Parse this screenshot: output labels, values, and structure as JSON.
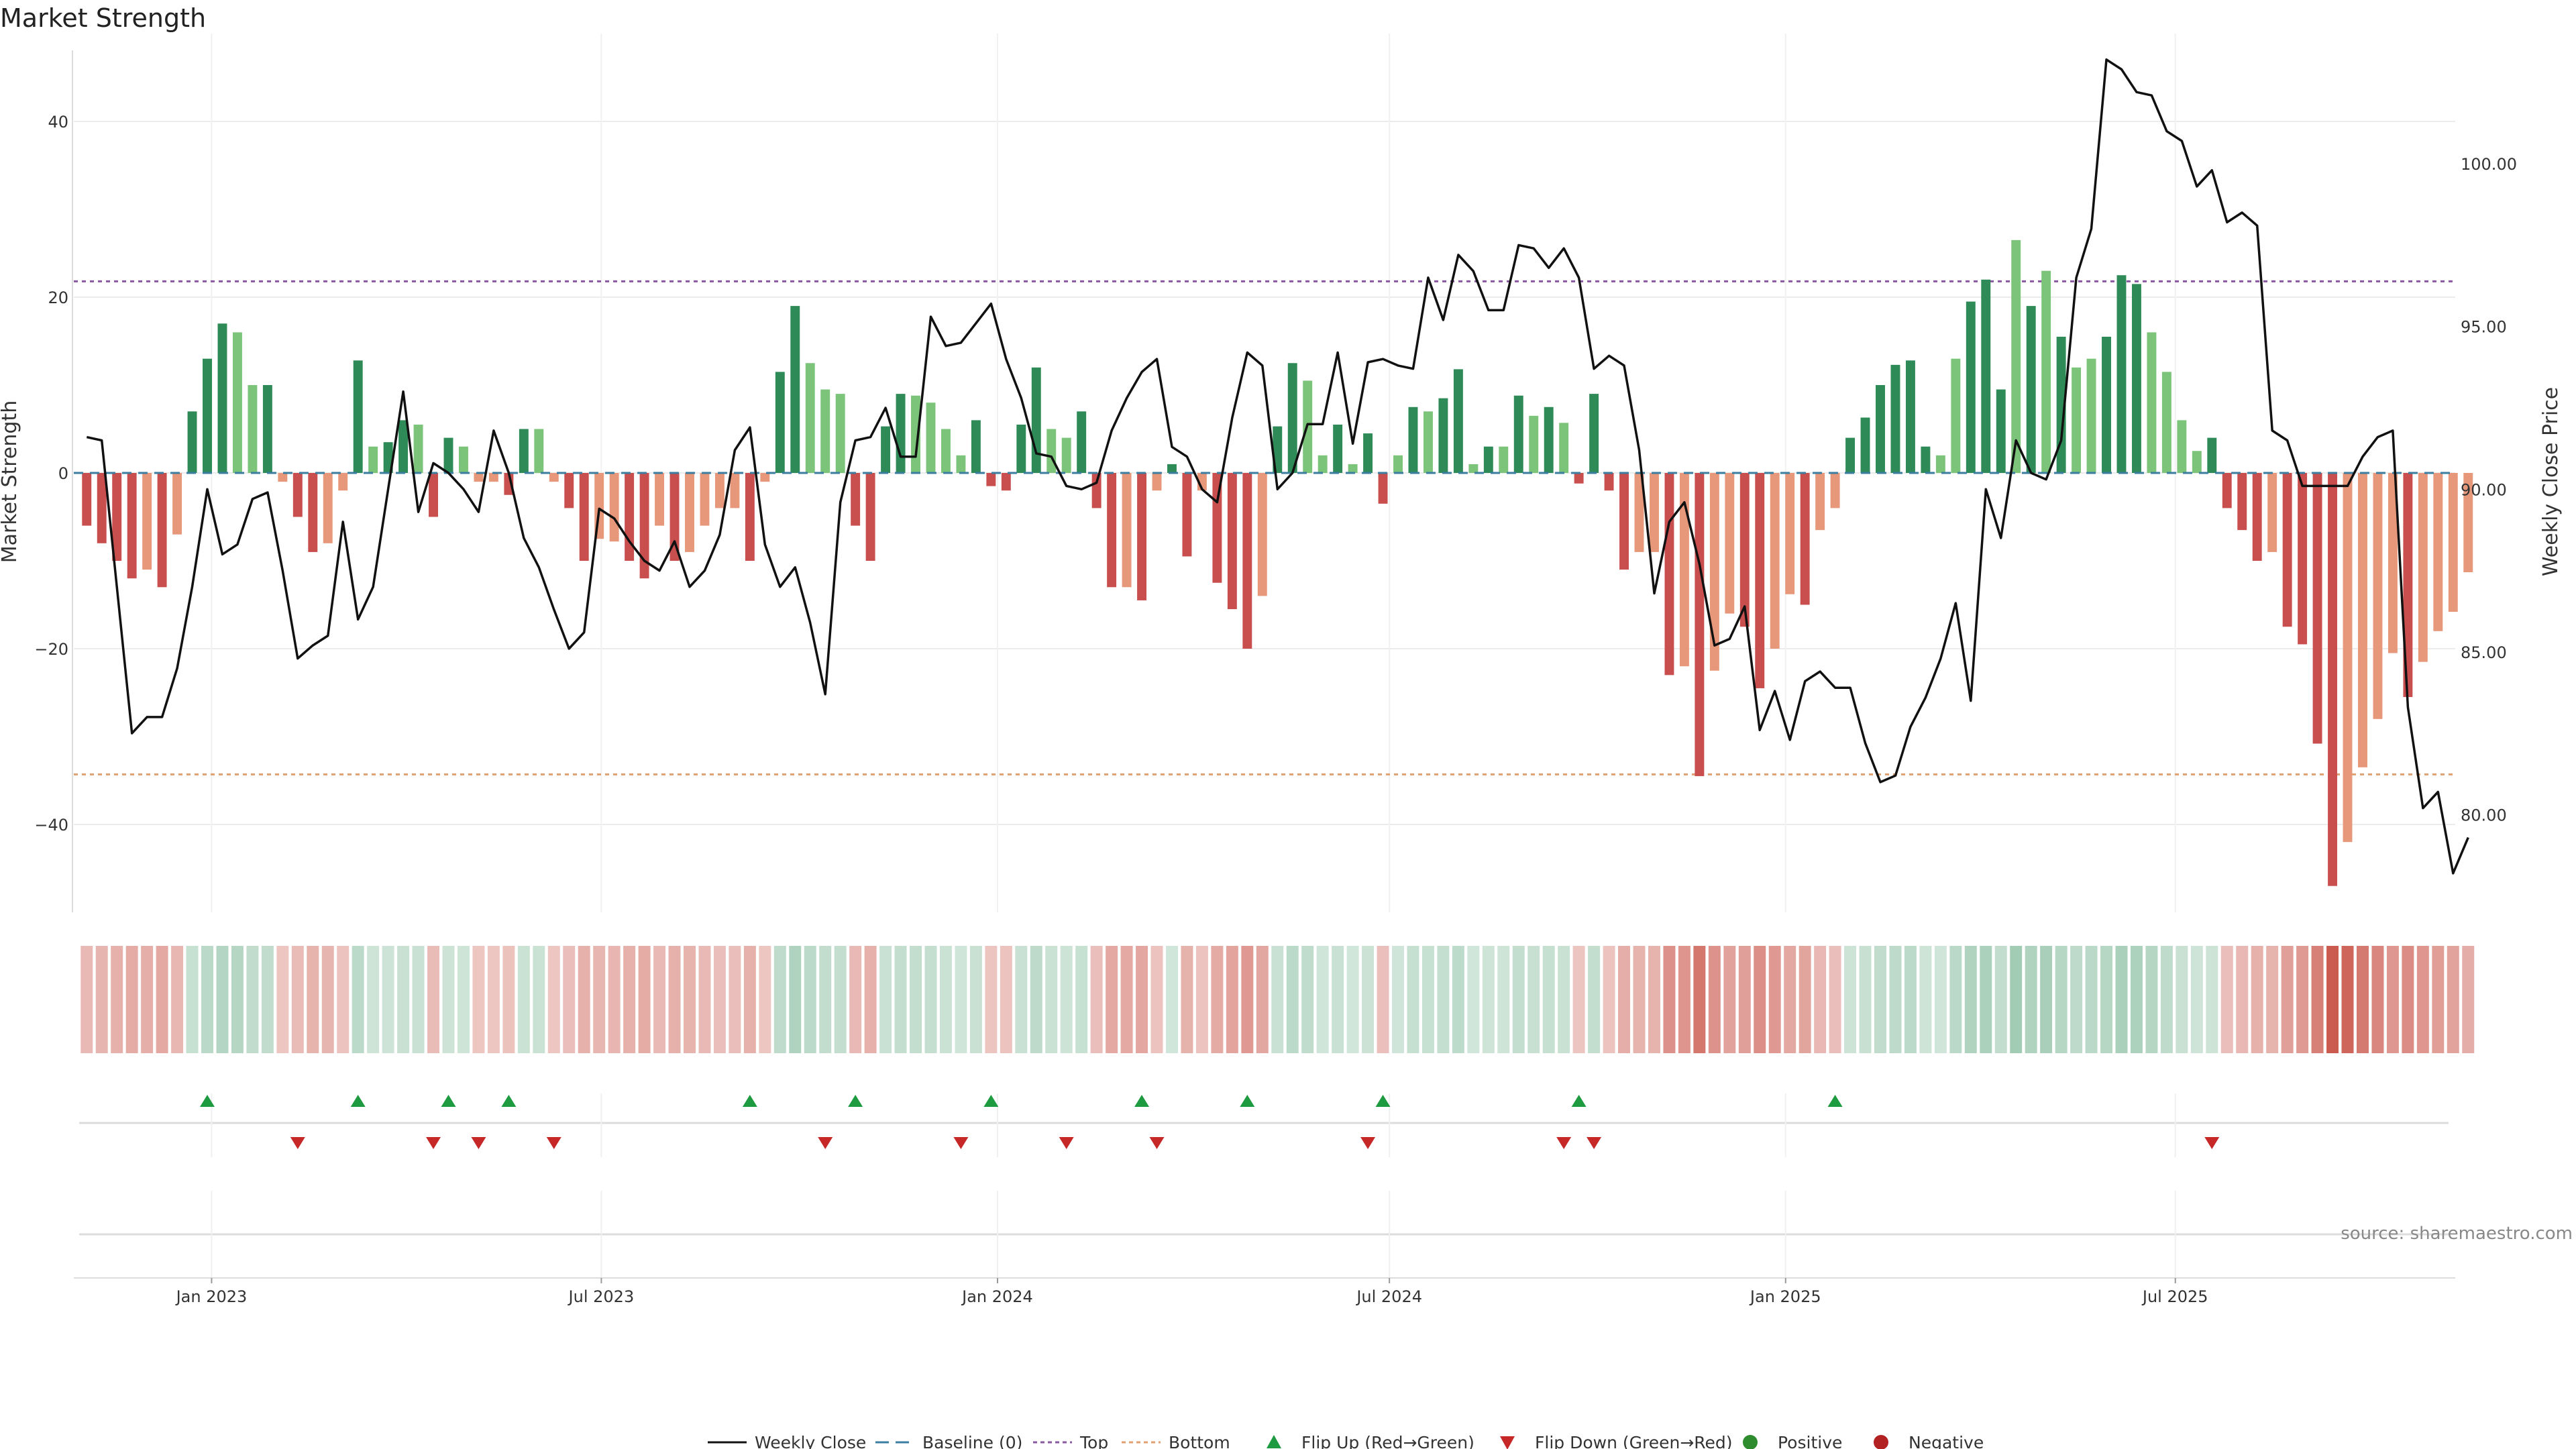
{
  "title": "Market Strength",
  "source": "source: sharemaestro.com",
  "colors": {
    "strong_green": "#2e8b57",
    "light_green": "#7cc47a",
    "strong_red": "#c94f4f",
    "light_red": "#e8987a",
    "price_line": "#111111",
    "baseline": "#3b7ea1",
    "top": "#8a5aa0",
    "bottom": "#e0a070",
    "flip_up": "#1e9a40",
    "flip_down": "#c62828",
    "positive": "#2e8b2e",
    "negative": "#b22222"
  },
  "legend": [
    {
      "key": "weekly_close",
      "label": "Weekly Close"
    },
    {
      "key": "baseline",
      "label": "Baseline (0)"
    },
    {
      "key": "top",
      "label": "Top"
    },
    {
      "key": "bottom",
      "label": "Bottom"
    },
    {
      "key": "flip_up",
      "label": "Flip Up (Red→Green)"
    },
    {
      "key": "flip_down",
      "label": "Flip Down (Green→Red)"
    },
    {
      "key": "positive",
      "label": "Positive"
    },
    {
      "key": "negative",
      "label": "Negative"
    }
  ],
  "chart_data": {
    "type": "bar",
    "title": "Market Strength",
    "ylabel": "Market Strength",
    "y2label": "Weekly Close Price",
    "ylim": [
      -50,
      50
    ],
    "y2lim": [
      77,
      104
    ],
    "y_ticks": [
      40,
      20,
      0,
      -20,
      -40
    ],
    "y_tick_labels": [
      "40",
      "20",
      "0",
      "−20",
      "−40"
    ],
    "y2_ticks": [
      100,
      95,
      90,
      85,
      80
    ],
    "y2_tick_labels": [
      "100.00",
      "95.00",
      "90.00",
      "85.00",
      "80.00"
    ],
    "x_range": [
      "2022-10-29",
      "2025-11-08"
    ],
    "date_ticks": [
      {
        "date": "2023-01-01",
        "label": "Jan 2023"
      },
      {
        "date": "2023-07-01",
        "label": "Jul 2023"
      },
      {
        "date": "2024-01-01",
        "label": "Jan 2024"
      },
      {
        "date": "2024-07-01",
        "label": "Jul 2024"
      },
      {
        "date": "2025-01-01",
        "label": "Jan 2025"
      },
      {
        "date": "2025-07-01",
        "label": "Jul 2025"
      }
    ],
    "top_threshold": 21.8,
    "bottom_threshold": -34.3,
    "baseline": 0,
    "grid": true,
    "legend_position": "bottom",
    "start_date": "2022-11-04",
    "week_step_days": 7,
    "strength": [
      -6,
      -8,
      -10,
      -12,
      -11,
      -13,
      -7,
      7,
      13,
      17,
      16,
      10,
      10,
      -1,
      -5,
      -9,
      -8,
      -2,
      12.8,
      3,
      3.5,
      6,
      5.5,
      -5,
      4,
      3,
      -1,
      -1,
      -2.5,
      5,
      5,
      -1,
      -4,
      -10,
      -7.5,
      -7.8,
      -10,
      -12,
      -6,
      -10,
      -9,
      -6,
      -4,
      -4,
      -10,
      -1,
      11.5,
      19,
      12.5,
      9.5,
      9,
      -6,
      -10,
      5.3,
      9,
      8.8,
      8,
      5,
      2,
      6,
      -1.5,
      -2,
      5.5,
      12,
      5,
      4,
      7,
      -4,
      -13,
      -13,
      -14.5,
      -2,
      1,
      -9.5,
      -2,
      -12.5,
      -15.5,
      -20,
      -14,
      5.3,
      12.5,
      10.5,
      2,
      5.5,
      1,
      4.5,
      -3.5,
      2,
      7.5,
      7,
      8.5,
      11.8,
      1,
      3,
      3,
      8.8,
      6.5,
      7.5,
      5.7,
      -1.2,
      9,
      -2,
      -11,
      -9,
      -9,
      -23,
      -22,
      -34.5,
      -22.5,
      -16,
      -17.5,
      -24.5,
      -20,
      -13.8,
      -15,
      -6.5,
      -4,
      4,
      6.3,
      10,
      12.3,
      12.8,
      3,
      2,
      13,
      19.5,
      22,
      9.5,
      26.5,
      19,
      23,
      15.5,
      12,
      13,
      15.5,
      22.5,
      21.5,
      16,
      11.5,
      6,
      2.5,
      4,
      -4,
      -6.5,
      -10,
      -9,
      -17.5,
      -19.5,
      -30.8,
      -47,
      -42,
      -33.5,
      -28,
      -20.5,
      -25.5,
      -21.5,
      -18,
      -15.8,
      -11.3
    ],
    "strength_shade": [
      "strong",
      "strong",
      "strong",
      "strong",
      "light",
      "strong",
      "light",
      "strong",
      "strong",
      "strong",
      "light",
      "light",
      "strong",
      "light",
      "strong",
      "strong",
      "light",
      "light",
      "strong",
      "light",
      "strong",
      "strong",
      "light",
      "strong",
      "strong",
      "light",
      "light",
      "light",
      "strong",
      "strong",
      "light",
      "light",
      "strong",
      "strong",
      "light",
      "light",
      "strong",
      "strong",
      "light",
      "strong",
      "light",
      "light",
      "light",
      "light",
      "strong",
      "light",
      "strong",
      "strong",
      "light",
      "light",
      "light",
      "strong",
      "strong",
      "strong",
      "strong",
      "light",
      "light",
      "light",
      "light",
      "strong",
      "strong",
      "strong",
      "strong",
      "strong",
      "light",
      "light",
      "strong",
      "strong",
      "strong",
      "light",
      "strong",
      "light",
      "strong",
      "strong",
      "light",
      "strong",
      "strong",
      "strong",
      "light",
      "strong",
      "strong",
      "light",
      "light",
      "strong",
      "light",
      "strong",
      "strong",
      "light",
      "strong",
      "light",
      "strong",
      "strong",
      "light",
      "strong",
      "light",
      "strong",
      "light",
      "strong",
      "light",
      "strong",
      "strong",
      "strong",
      "strong",
      "light",
      "light",
      "strong",
      "light",
      "strong",
      "light",
      "light",
      "strong",
      "strong",
      "light",
      "light",
      "strong",
      "light",
      "light",
      "strong",
      "strong",
      "strong",
      "strong",
      "strong",
      "strong",
      "light",
      "light",
      "strong",
      "strong",
      "strong",
      "light",
      "strong",
      "light",
      "strong",
      "light",
      "light",
      "strong",
      "strong",
      "strong",
      "light",
      "light",
      "light",
      "light",
      "strong",
      "strong",
      "strong",
      "strong",
      "light",
      "strong",
      "strong",
      "strong",
      "strong",
      "light",
      "light",
      "light",
      "light",
      "strong",
      "light",
      "light",
      "light",
      "light"
    ],
    "weekly_close": [
      91.6,
      91.5,
      87,
      82.5,
      83,
      83,
      84.5,
      87,
      90,
      88,
      88.3,
      89.7,
      89.9,
      87.5,
      84.8,
      85.2,
      85.5,
      89,
      86,
      87,
      90,
      93,
      89.3,
      90.8,
      90.5,
      90,
      89.3,
      91.8,
      90.5,
      88.5,
      87.6,
      86.3,
      85.1,
      85.6,
      89.4,
      89.1,
      88.4,
      87.8,
      87.5,
      88.4,
      87,
      87.5,
      88.6,
      91.2,
      91.9,
      88.3,
      87,
      87.6,
      85.9,
      83.7,
      89.6,
      91.5,
      91.6,
      92.5,
      91,
      91,
      95.3,
      94.4,
      94.5,
      95.1,
      95.7,
      94,
      92.8,
      91.1,
      91,
      90.1,
      90,
      90.2,
      91.8,
      92.8,
      93.6,
      94,
      91.3,
      91,
      90,
      89.6,
      92.2,
      94.2,
      93.8,
      90,
      90.5,
      92,
      92,
      94.2,
      91.4,
      93.9,
      94,
      93.8,
      93.7,
      96.5,
      95.2,
      97.2,
      96.7,
      95.5,
      95.5,
      97.5,
      97.4,
      96.8,
      97.4,
      96.5,
      93.7,
      94.1,
      93.8,
      91.2,
      86.8,
      89,
      89.6,
      87.7,
      85.2,
      85.4,
      86.4,
      82.6,
      83.8,
      82.3,
      84.1,
      84.4,
      83.9,
      83.9,
      82.2,
      81,
      81.2,
      82.7,
      83.6,
      84.8,
      86.5,
      83.5,
      90,
      88.5,
      91.5,
      90.5,
      90.3,
      91.5,
      96.5,
      98,
      103.2,
      102.9,
      102.2,
      102.1,
      101,
      100.7,
      99.3,
      99.8,
      98.2,
      98.5,
      98.1,
      91.8,
      91.5,
      90.1,
      90.1,
      90.1,
      90.1,
      91,
      91.6,
      91.8,
      83.3,
      80.2,
      80.7,
      78.2,
      79.3
    ],
    "flip_up_dates": [
      "2022-12-30",
      "2023-03-10",
      "2023-04-21",
      "2023-05-19",
      "2023-09-08",
      "2023-10-27",
      "2023-12-29",
      "2024-03-08",
      "2024-04-26",
      "2024-06-28",
      "2024-09-27",
      "2025-01-24"
    ],
    "flip_down_dates": [
      "2023-02-10",
      "2023-04-14",
      "2023-05-05",
      "2023-06-09",
      "2023-10-13",
      "2023-12-15",
      "2024-02-02",
      "2024-03-15",
      "2024-06-21",
      "2024-09-20",
      "2024-10-04",
      "2025-07-18"
    ]
  }
}
